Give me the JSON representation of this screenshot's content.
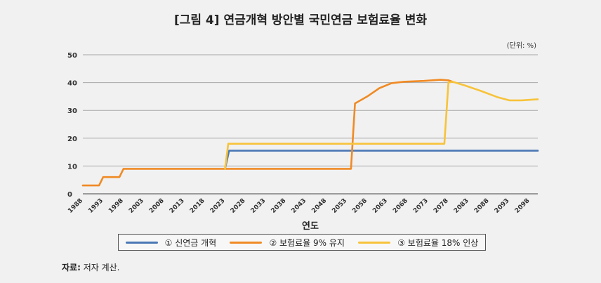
{
  "chart_data": {
    "type": "line",
    "title": "[그림 4] 연금개혁 방안별 국민연금 보험료율 변화",
    "unit": "(단위: %)",
    "xlabel": "연도",
    "ylabel": "",
    "ylim": [
      0,
      50
    ],
    "yticks": [
      0,
      10,
      20,
      30,
      40,
      50
    ],
    "xlim": [
      1988,
      2100
    ],
    "xticks": [
      1988,
      1993,
      1998,
      2003,
      2008,
      2013,
      2018,
      2023,
      2028,
      2033,
      2038,
      2043,
      2048,
      2053,
      2058,
      2063,
      2068,
      2073,
      2078,
      2083,
      2088,
      2093,
      2098
    ],
    "grid": true,
    "legend_position": "bottom",
    "series": [
      {
        "name": "① 신연금 개혁",
        "color": "#4a78b5",
        "points": [
          [
            2023,
            9
          ],
          [
            2024,
            15.5
          ],
          [
            2100,
            15.5
          ]
        ]
      },
      {
        "name": "② 보험료율 9% 유지",
        "color": "#f08a24",
        "points": [
          [
            1988,
            3
          ],
          [
            1992,
            3
          ],
          [
            1993,
            6
          ],
          [
            1997,
            6
          ],
          [
            1998,
            9
          ],
          [
            2054,
            9
          ],
          [
            2055,
            32.5
          ],
          [
            2058,
            35
          ],
          [
            2061,
            38
          ],
          [
            2064,
            39.8
          ],
          [
            2067,
            40.3
          ],
          [
            2072,
            40.6
          ],
          [
            2076,
            41
          ],
          [
            2078,
            40.8
          ],
          [
            2079,
            40.3
          ]
        ]
      },
      {
        "name": "③ 보험료율 18% 인상",
        "color": "#f7c33a",
        "points": [
          [
            2023,
            9
          ],
          [
            2023.8,
            18
          ],
          [
            2077,
            18
          ],
          [
            2078,
            40
          ],
          [
            2079,
            40.3
          ],
          [
            2082,
            39
          ],
          [
            2086,
            37
          ],
          [
            2090,
            34.8
          ],
          [
            2093,
            33.6
          ],
          [
            2096,
            33.6
          ],
          [
            2100,
            34
          ]
        ]
      }
    ]
  },
  "source": {
    "label": "자료:",
    "text": " 저자 계산."
  }
}
